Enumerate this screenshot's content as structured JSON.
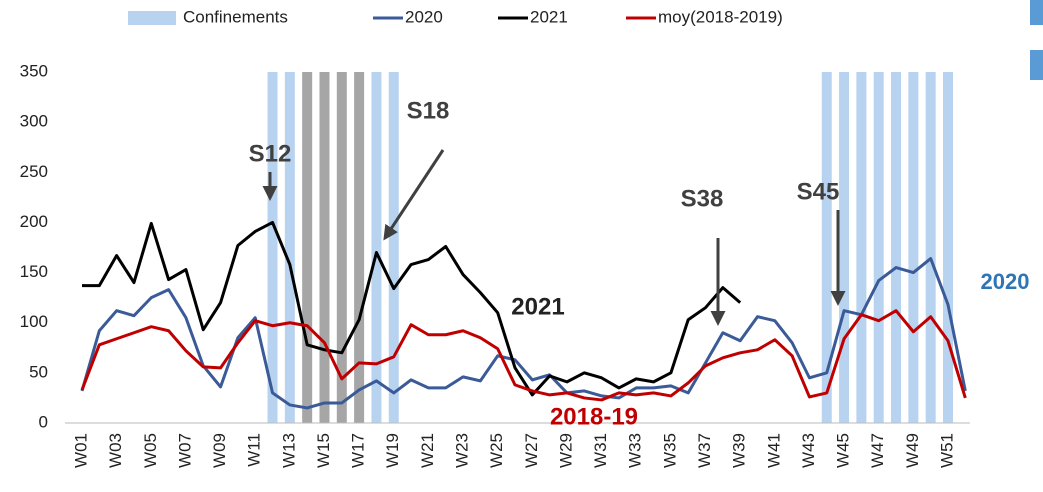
{
  "chart_data": {
    "type": "line",
    "categories": [
      "W01",
      null,
      "W03",
      null,
      "W05",
      null,
      "W07",
      null,
      "W09",
      null,
      "W11",
      null,
      "W13",
      null,
      "W15",
      null,
      "W17",
      null,
      "W19",
      null,
      "W21",
      null,
      "W23",
      null,
      "W25",
      null,
      "W27",
      null,
      "W29",
      null,
      "W31",
      null,
      "W33",
      null,
      "W35",
      null,
      "W37",
      null,
      "W39",
      null,
      "W41",
      null,
      "W43",
      null,
      "W45",
      null,
      "W47",
      null,
      "W49",
      null,
      "W51",
      null
    ],
    "series": [
      {
        "name": "Confinements",
        "type": "bar",
        "color": "#b8d3ef",
        "colors": [
          null,
          null,
          null,
          null,
          null,
          null,
          null,
          null,
          null,
          null,
          null,
          "#b8d3ef",
          "#b8d3ef",
          "#a6a6a6",
          "#a6a6a6",
          "#a6a6a6",
          "#a6a6a6",
          "#b8d3ef",
          "#b8d3ef",
          null,
          null,
          null,
          null,
          null,
          null,
          null,
          null,
          null,
          null,
          null,
          null,
          null,
          null,
          null,
          null,
          null,
          null,
          null,
          null,
          null,
          null,
          null,
          null,
          "#b8d3ef",
          "#b8d3ef",
          "#b8d3ef",
          "#b8d3ef",
          "#b8d3ef",
          "#b8d3ef",
          "#b8d3ef",
          "#b8d3ef",
          null
        ],
        "values": [
          null,
          null,
          null,
          null,
          null,
          null,
          null,
          null,
          null,
          null,
          null,
          350,
          350,
          350,
          350,
          350,
          350,
          350,
          350,
          null,
          null,
          null,
          null,
          null,
          null,
          null,
          null,
          null,
          null,
          null,
          null,
          null,
          null,
          null,
          null,
          null,
          null,
          null,
          null,
          null,
          null,
          null,
          null,
          350,
          350,
          350,
          350,
          350,
          350,
          350,
          350,
          null
        ]
      },
      {
        "name": "2020",
        "color": "#3a5a98",
        "values": [
          32,
          92,
          112,
          107,
          125,
          133,
          105,
          57,
          36,
          85,
          105,
          30,
          18,
          15,
          20,
          20,
          33,
          42,
          30,
          43,
          35,
          35,
          46,
          42,
          67,
          63,
          43,
          48,
          30,
          32,
          27,
          25,
          35,
          35,
          37,
          30,
          60,
          90,
          82,
          106,
          102,
          80,
          45,
          50,
          112,
          108,
          142,
          155,
          150,
          164,
          118,
          32
        ]
      },
      {
        "name": "2021",
        "color": "#000000",
        "values": [
          137,
          137,
          167,
          140,
          199,
          143,
          153,
          93,
          120,
          177,
          191,
          200,
          158,
          78,
          73,
          70,
          103,
          170,
          134,
          158,
          163,
          176,
          148,
          130,
          110,
          55,
          28,
          47,
          41,
          50,
          45,
          35,
          44,
          41,
          50,
          103,
          115,
          135,
          120,
          null,
          null,
          null,
          null,
          null,
          null,
          null,
          null,
          null,
          null,
          null,
          null,
          null
        ]
      },
      {
        "name": "moy(2018-2019)",
        "color": "#c00000",
        "values": [
          33,
          78,
          84,
          90,
          96,
          92,
          72,
          56,
          55,
          80,
          102,
          97,
          100,
          97,
          80,
          44,
          60,
          59,
          66,
          98,
          88,
          88,
          92,
          85,
          74,
          38,
          32,
          28,
          30,
          25,
          23,
          30,
          28,
          30,
          27,
          40,
          57,
          65,
          70,
          73,
          83,
          67,
          26,
          30,
          84,
          108,
          102,
          112,
          91,
          106,
          82,
          25
        ]
      }
    ],
    "ylim": [
      0,
      350
    ],
    "yticks": [
      0,
      50,
      100,
      150,
      200,
      250,
      300,
      350
    ],
    "grid": false,
    "legend": "top",
    "annotations": [
      {
        "text": "S12",
        "color": "#404040"
      },
      {
        "text": "S18",
        "color": "#404040"
      },
      {
        "text": "S38",
        "color": "#404040"
      },
      {
        "text": "S45",
        "color": "#404040"
      },
      {
        "text": "2021",
        "color": "#222222"
      },
      {
        "text": "2018-19",
        "color": "#c00000"
      },
      {
        "text": "2020",
        "color": "#2e75b6"
      }
    ]
  }
}
